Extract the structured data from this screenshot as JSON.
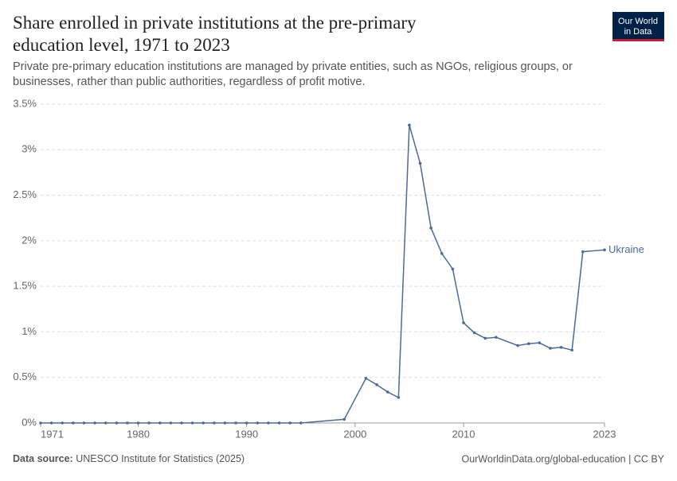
{
  "chart_data": {
    "type": "line",
    "title": "Share enrolled in private institutions at the pre-primary education level, 1971 to 2023",
    "subtitle": "Private pre-primary education institutions are managed by private entities, such as NGOs, religious groups, or businesses, rather than public authorities, regardless of profit motive.",
    "logo": "Our World in Data",
    "source_label": "Data source:",
    "source": "UNESCO Institute for Statistics (2025)",
    "credit": "OurWorldinData.org/global-education | CC BY",
    "x": [
      1971,
      1972,
      1973,
      1974,
      1975,
      1976,
      1977,
      1978,
      1979,
      1980,
      1981,
      1982,
      1983,
      1984,
      1985,
      1986,
      1987,
      1988,
      1989,
      1990,
      1991,
      1992,
      1993,
      1994,
      1995,
      1999,
      2001,
      2002,
      2003,
      2004,
      2005,
      2006,
      2007,
      2008,
      2009,
      2010,
      2011,
      2012,
      2013,
      2015,
      2016,
      2017,
      2018,
      2019,
      2020,
      2021,
      2023
    ],
    "series": [
      {
        "name": "Ukraine",
        "color": "#4c6a9c",
        "values": [
          0,
          0,
          0,
          0,
          0,
          0,
          0,
          0,
          0,
          0,
          0,
          0,
          0,
          0,
          0,
          0,
          0,
          0,
          0,
          0,
          0,
          0,
          0,
          0,
          0,
          0.04,
          0.49,
          0.42,
          0.34,
          0.28,
          3.27,
          2.85,
          2.14,
          1.86,
          1.69,
          1.1,
          0.99,
          0.93,
          0.94,
          0.85,
          0.87,
          0.88,
          0.82,
          0.83,
          0.8,
          1.88,
          1.9
        ]
      }
    ],
    "xlim": [
      1971,
      2023
    ],
    "xticks": [
      1971,
      1980,
      1990,
      2000,
      2010,
      2023
    ],
    "ylim": [
      0,
      3.5
    ],
    "yticks": [
      {
        "value": 0,
        "label": "0%"
      },
      {
        "value": 0.5,
        "label": "0.5%"
      },
      {
        "value": 1,
        "label": "1%"
      },
      {
        "value": 1.5,
        "label": "1.5%"
      },
      {
        "value": 2,
        "label": "2%"
      },
      {
        "value": 2.5,
        "label": "2.5%"
      },
      {
        "value": 3,
        "label": "3%"
      },
      {
        "value": 3.5,
        "label": "3.5%"
      }
    ],
    "grid": true
  }
}
